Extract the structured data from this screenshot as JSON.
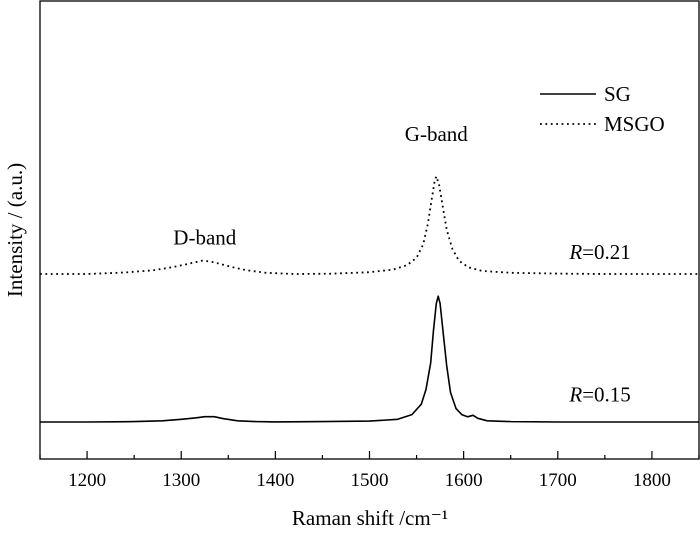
{
  "chart_data": {
    "type": "line",
    "xlabel": "Raman shift /cm⁻¹",
    "ylabel": "Intensity / (a.u.)",
    "xlim": [
      1150,
      1850
    ],
    "xticks": [
      "1200",
      "1300",
      "1400",
      "1500",
      "1600",
      "1700",
      "1800"
    ],
    "yticks_visible": false,
    "grid": false,
    "legend_position": "top-right",
    "series": [
      {
        "name": "SG",
        "style": "solid",
        "color": "#000000",
        "x": [
          1150,
          1200,
          1250,
          1280,
          1300,
          1315,
          1325,
          1335,
          1345,
          1360,
          1380,
          1400,
          1450,
          1500,
          1530,
          1545,
          1555,
          1560,
          1565,
          1568,
          1571,
          1573,
          1575,
          1578,
          1582,
          1586,
          1592,
          1598,
          1604,
          1610,
          1615,
          1625,
          1650,
          1700,
          1750,
          1800,
          1850
        ],
        "y": [
          0.0,
          0.0,
          0.003,
          0.008,
          0.018,
          0.028,
          0.036,
          0.036,
          0.022,
          0.008,
          0.003,
          0.001,
          0.003,
          0.006,
          0.018,
          0.05,
          0.12,
          0.22,
          0.4,
          0.62,
          0.8,
          0.85,
          0.8,
          0.62,
          0.38,
          0.2,
          0.09,
          0.05,
          0.035,
          0.045,
          0.025,
          0.008,
          0.003,
          0.0,
          0.0,
          0.0,
          0.0
        ]
      },
      {
        "name": "MSGO",
        "style": "dotted",
        "color": "#000000",
        "x": [
          1150,
          1200,
          1240,
          1270,
          1290,
          1305,
          1315,
          1322,
          1330,
          1340,
          1355,
          1370,
          1390,
          1420,
          1460,
          1500,
          1525,
          1540,
          1550,
          1557,
          1562,
          1566,
          1569,
          1571,
          1574,
          1578,
          1582,
          1588,
          1595,
          1605,
          1620,
          1650,
          1700,
          1750,
          1800,
          1850
        ],
        "y": [
          1.0,
          1.0,
          1.01,
          1.025,
          1.045,
          1.065,
          1.08,
          1.09,
          1.085,
          1.07,
          1.045,
          1.025,
          1.008,
          1.0,
          1.002,
          1.012,
          1.03,
          1.06,
          1.11,
          1.2,
          1.34,
          1.5,
          1.62,
          1.66,
          1.6,
          1.45,
          1.3,
          1.17,
          1.09,
          1.045,
          1.02,
          1.008,
          1.003,
          1.0,
          1.0,
          1.0
        ]
      }
    ],
    "annotations": [
      {
        "text": "D-band",
        "x": 1325,
        "y": 1.2
      },
      {
        "text": "G-band",
        "x": 1571,
        "y": 1.9
      }
    ],
    "ratio_labels": [
      {
        "var": "R",
        "value": "=0.21",
        "x": 1745,
        "y": 1.1
      },
      {
        "var": "R",
        "value": "=0.15",
        "x": 1745,
        "y": 0.14
      }
    ]
  }
}
